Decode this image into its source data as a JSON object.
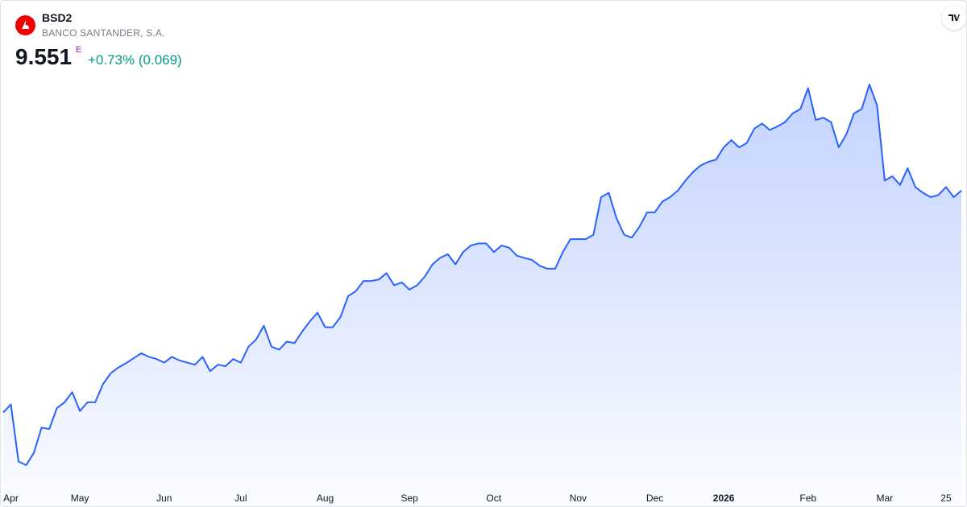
{
  "header": {
    "symbol": "BSD2",
    "name": "BANCO SANTANDER, S.A.",
    "price": 9.551,
    "flag": "E",
    "change": "+0.73% (0.069)"
  },
  "chart_data": {
    "type": "area",
    "color": "#2962ff",
    "categories": [
      null,
      "Apr",
      null,
      null,
      null,
      null,
      null,
      null,
      null,
      null,
      "May",
      null,
      null,
      null,
      null,
      null,
      null,
      null,
      null,
      null,
      null,
      "Jun",
      null,
      null,
      null,
      null,
      null,
      null,
      null,
      null,
      null,
      "Jul",
      null,
      null,
      null,
      null,
      null,
      null,
      null,
      null,
      null,
      null,
      "Aug",
      null,
      null,
      null,
      null,
      null,
      null,
      null,
      null,
      null,
      null,
      "Sep",
      null,
      null,
      null,
      null,
      null,
      null,
      null,
      null,
      null,
      null,
      "Oct",
      null,
      null,
      null,
      null,
      null,
      null,
      null,
      null,
      null,
      null,
      "Nov",
      null,
      null,
      null,
      null,
      null,
      null,
      null,
      null,
      null,
      "Dec",
      null,
      null,
      null,
      null,
      null,
      null,
      null,
      null,
      "2026",
      null,
      null,
      null,
      null,
      null,
      null,
      null,
      null,
      null,
      null,
      "Feb",
      null,
      null,
      null,
      null,
      null,
      null,
      null,
      null,
      null,
      "Mar",
      null,
      null,
      null,
      null,
      null,
      null,
      null,
      "25",
      null,
      null
    ],
    "values": [
      6.48,
      6.59,
      5.8,
      5.75,
      5.92,
      6.27,
      6.25,
      6.54,
      6.62,
      6.76,
      6.5,
      6.62,
      6.62,
      6.87,
      7.02,
      7.1,
      7.16,
      7.23,
      7.3,
      7.25,
      7.22,
      7.17,
      7.25,
      7.2,
      7.17,
      7.14,
      7.25,
      7.05,
      7.14,
      7.12,
      7.22,
      7.17,
      7.39,
      7.49,
      7.68,
      7.39,
      7.35,
      7.46,
      7.44,
      7.6,
      7.74,
      7.86,
      7.66,
      7.66,
      7.8,
      8.09,
      8.16,
      8.3,
      8.3,
      8.32,
      8.41,
      8.24,
      8.28,
      8.18,
      8.24,
      8.36,
      8.53,
      8.62,
      8.67,
      8.53,
      8.7,
      8.79,
      8.82,
      8.82,
      8.7,
      8.79,
      8.76,
      8.65,
      8.62,
      8.59,
      8.51,
      8.47,
      8.47,
      8.7,
      8.88,
      8.88,
      8.88,
      8.94,
      9.46,
      9.52,
      9.17,
      8.94,
      8.9,
      9.05,
      9.25,
      9.25,
      9.4,
      9.46,
      9.55,
      9.69,
      9.81,
      9.9,
      9.95,
      9.98,
      10.15,
      10.25,
      10.15,
      10.21,
      10.41,
      10.48,
      10.39,
      10.44,
      10.5,
      10.62,
      10.68,
      10.97,
      10.53,
      10.56,
      10.5,
      10.15,
      10.33,
      10.62,
      10.68,
      11.02,
      10.73,
      9.69,
      9.75,
      9.63,
      9.86,
      9.6,
      9.52,
      9.46,
      9.49,
      9.6,
      9.46,
      9.551
    ]
  }
}
